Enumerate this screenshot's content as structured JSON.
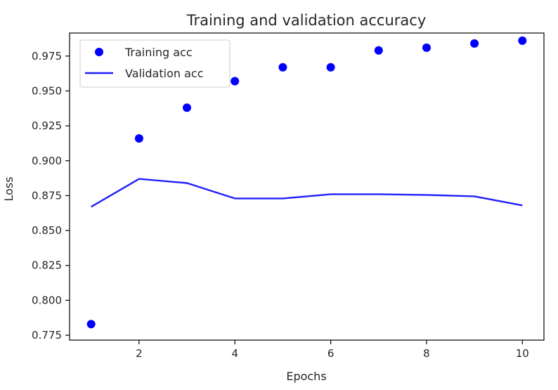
{
  "chart_data": {
    "type": "line",
    "title": "Training and validation accuracy",
    "xlabel": "Epochs",
    "ylabel": "Loss",
    "xlim": [
      0.55,
      10.45
    ],
    "ylim": [
      0.7715,
      0.9915
    ],
    "xticks": [
      2,
      4,
      6,
      8,
      10
    ],
    "xtick_labels": [
      "2",
      "4",
      "6",
      "8",
      "10"
    ],
    "yticks": [
      0.775,
      0.8,
      0.825,
      0.85,
      0.875,
      0.9,
      0.925,
      0.95,
      0.975
    ],
    "ytick_labels": [
      "0.775",
      "0.800",
      "0.825",
      "0.850",
      "0.875",
      "0.900",
      "0.925",
      "0.950",
      "0.975"
    ],
    "grid": false,
    "legend_position": "top-left",
    "series": [
      {
        "name": "Training acc",
        "style": "points",
        "color": "#0000ff",
        "x": [
          1,
          2,
          3,
          4,
          5,
          6,
          7,
          8,
          9,
          10
        ],
        "y": [
          0.783,
          0.916,
          0.938,
          0.957,
          0.967,
          0.967,
          0.979,
          0.981,
          0.984,
          0.986
        ]
      },
      {
        "name": "Validation acc",
        "style": "line",
        "color": "#1f1fff",
        "x": [
          1,
          2,
          3,
          4,
          5,
          6,
          7,
          8,
          9,
          10
        ],
        "y": [
          0.867,
          0.887,
          0.884,
          0.873,
          0.873,
          0.876,
          0.876,
          0.8755,
          0.8745,
          0.868
        ]
      }
    ]
  }
}
